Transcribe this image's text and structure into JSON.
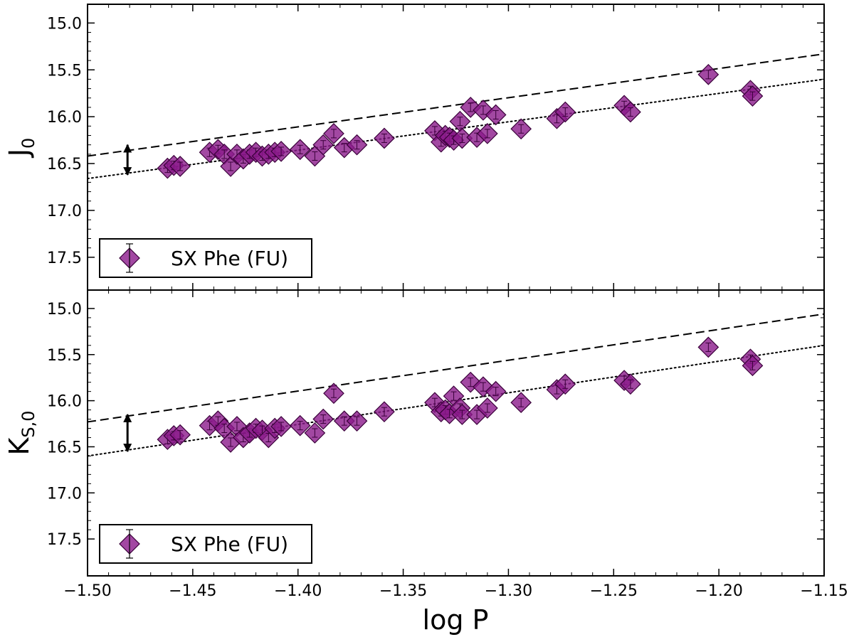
{
  "chart_data": [
    {
      "type": "scatter",
      "panel": "top",
      "ylabel_main": "J",
      "ylabel_sub": "0",
      "xlim": [
        -1.5,
        -1.15
      ],
      "ylim": [
        17.85,
        14.8
      ],
      "yticks": [
        15.0,
        15.5,
        16.0,
        16.5,
        17.0,
        17.5
      ],
      "ytick_labels": [
        "15.0",
        "15.5",
        "16.0",
        "16.5",
        "17.0",
        "17.5"
      ],
      "legend": {
        "label": "SX Phe (FU)",
        "position": "lower-left"
      },
      "series": [
        {
          "name": "SX Phe (FU)",
          "color": "#8b1a8b",
          "marker": "diamond",
          "x": [
            -1.462,
            -1.459,
            -1.456,
            -1.442,
            -1.438,
            -1.435,
            -1.432,
            -1.429,
            -1.426,
            -1.423,
            -1.42,
            -1.417,
            -1.414,
            -1.411,
            -1.408,
            -1.399,
            -1.392,
            -1.388,
            -1.383,
            -1.378,
            -1.372,
            -1.359,
            -1.335,
            -1.332,
            -1.33,
            -1.328,
            -1.326,
            -1.323,
            -1.322,
            -1.318,
            -1.315,
            -1.312,
            -1.31,
            -1.306,
            -1.294,
            -1.277,
            -1.273,
            -1.245,
            -1.242,
            -1.205,
            -1.185,
            -1.184
          ],
          "y": [
            16.55,
            16.52,
            16.53,
            16.38,
            16.35,
            16.4,
            16.53,
            16.4,
            16.45,
            16.4,
            16.38,
            16.42,
            16.4,
            16.38,
            16.37,
            16.35,
            16.42,
            16.3,
            16.18,
            16.33,
            16.3,
            16.23,
            16.15,
            16.27,
            16.2,
            16.22,
            16.25,
            16.05,
            16.23,
            15.9,
            16.22,
            15.93,
            16.18,
            15.98,
            16.13,
            16.02,
            15.95,
            15.88,
            15.95,
            15.55,
            15.72,
            15.78
          ]
        }
      ],
      "lines": [
        {
          "name": "dashed",
          "style": "dashed",
          "x": [
            -1.5,
            -1.15
          ],
          "y": [
            16.42,
            15.33
          ]
        },
        {
          "name": "dotted",
          "style": "dotted",
          "x": [
            -1.5,
            -1.15
          ],
          "y": [
            16.66,
            15.6
          ]
        }
      ],
      "arrow": {
        "x": -1.481,
        "y1": 16.3,
        "y2": 16.62
      }
    },
    {
      "type": "scatter",
      "panel": "bottom",
      "ylabel_main": "K",
      "ylabel_sub": "S,0",
      "xlabel": "log P",
      "xlim": [
        -1.5,
        -1.15
      ],
      "ylim": [
        17.9,
        14.8
      ],
      "xticks": [
        -1.5,
        -1.45,
        -1.4,
        -1.35,
        -1.3,
        -1.25,
        -1.2,
        -1.15
      ],
      "xtick_labels": [
        "−1.50",
        "−1.45",
        "−1.40",
        "−1.35",
        "−1.30",
        "−1.25",
        "−1.20",
        "−1.15"
      ],
      "yticks": [
        15.0,
        15.5,
        16.0,
        16.5,
        17.0,
        17.5
      ],
      "ytick_labels": [
        "15.0",
        "15.5",
        "16.0",
        "16.5",
        "17.0",
        "17.5"
      ],
      "legend": {
        "label": "SX Phe (FU)",
        "position": "lower-left"
      },
      "series": [
        {
          "name": "SX Phe (FU)",
          "color": "#8b1a8b",
          "marker": "diamond",
          "x": [
            -1.462,
            -1.459,
            -1.456,
            -1.442,
            -1.438,
            -1.435,
            -1.432,
            -1.429,
            -1.426,
            -1.423,
            -1.42,
            -1.417,
            -1.414,
            -1.411,
            -1.408,
            -1.399,
            -1.392,
            -1.388,
            -1.383,
            -1.378,
            -1.372,
            -1.359,
            -1.335,
            -1.332,
            -1.33,
            -1.328,
            -1.326,
            -1.323,
            -1.322,
            -1.318,
            -1.315,
            -1.312,
            -1.31,
            -1.306,
            -1.294,
            -1.277,
            -1.273,
            -1.245,
            -1.242,
            -1.205,
            -1.185,
            -1.184
          ],
          "y": [
            16.42,
            16.38,
            16.37,
            16.27,
            16.22,
            16.3,
            16.45,
            16.28,
            16.4,
            16.35,
            16.3,
            16.32,
            16.4,
            16.3,
            16.28,
            16.27,
            16.35,
            16.2,
            15.92,
            16.22,
            16.22,
            16.12,
            16.02,
            16.12,
            16.1,
            16.14,
            15.95,
            16.08,
            16.15,
            15.8,
            16.15,
            15.85,
            16.08,
            15.9,
            16.02,
            15.88,
            15.82,
            15.78,
            15.82,
            15.42,
            15.55,
            15.62
          ]
        }
      ],
      "lines": [
        {
          "name": "dashed",
          "style": "dashed",
          "x": [
            -1.5,
            -1.15
          ],
          "y": [
            16.23,
            15.06
          ]
        },
        {
          "name": "dotted",
          "style": "dotted",
          "x": [
            -1.5,
            -1.15
          ],
          "y": [
            16.6,
            15.4
          ]
        }
      ],
      "arrow": {
        "x": -1.481,
        "y1": 16.15,
        "y2": 16.55
      }
    }
  ]
}
